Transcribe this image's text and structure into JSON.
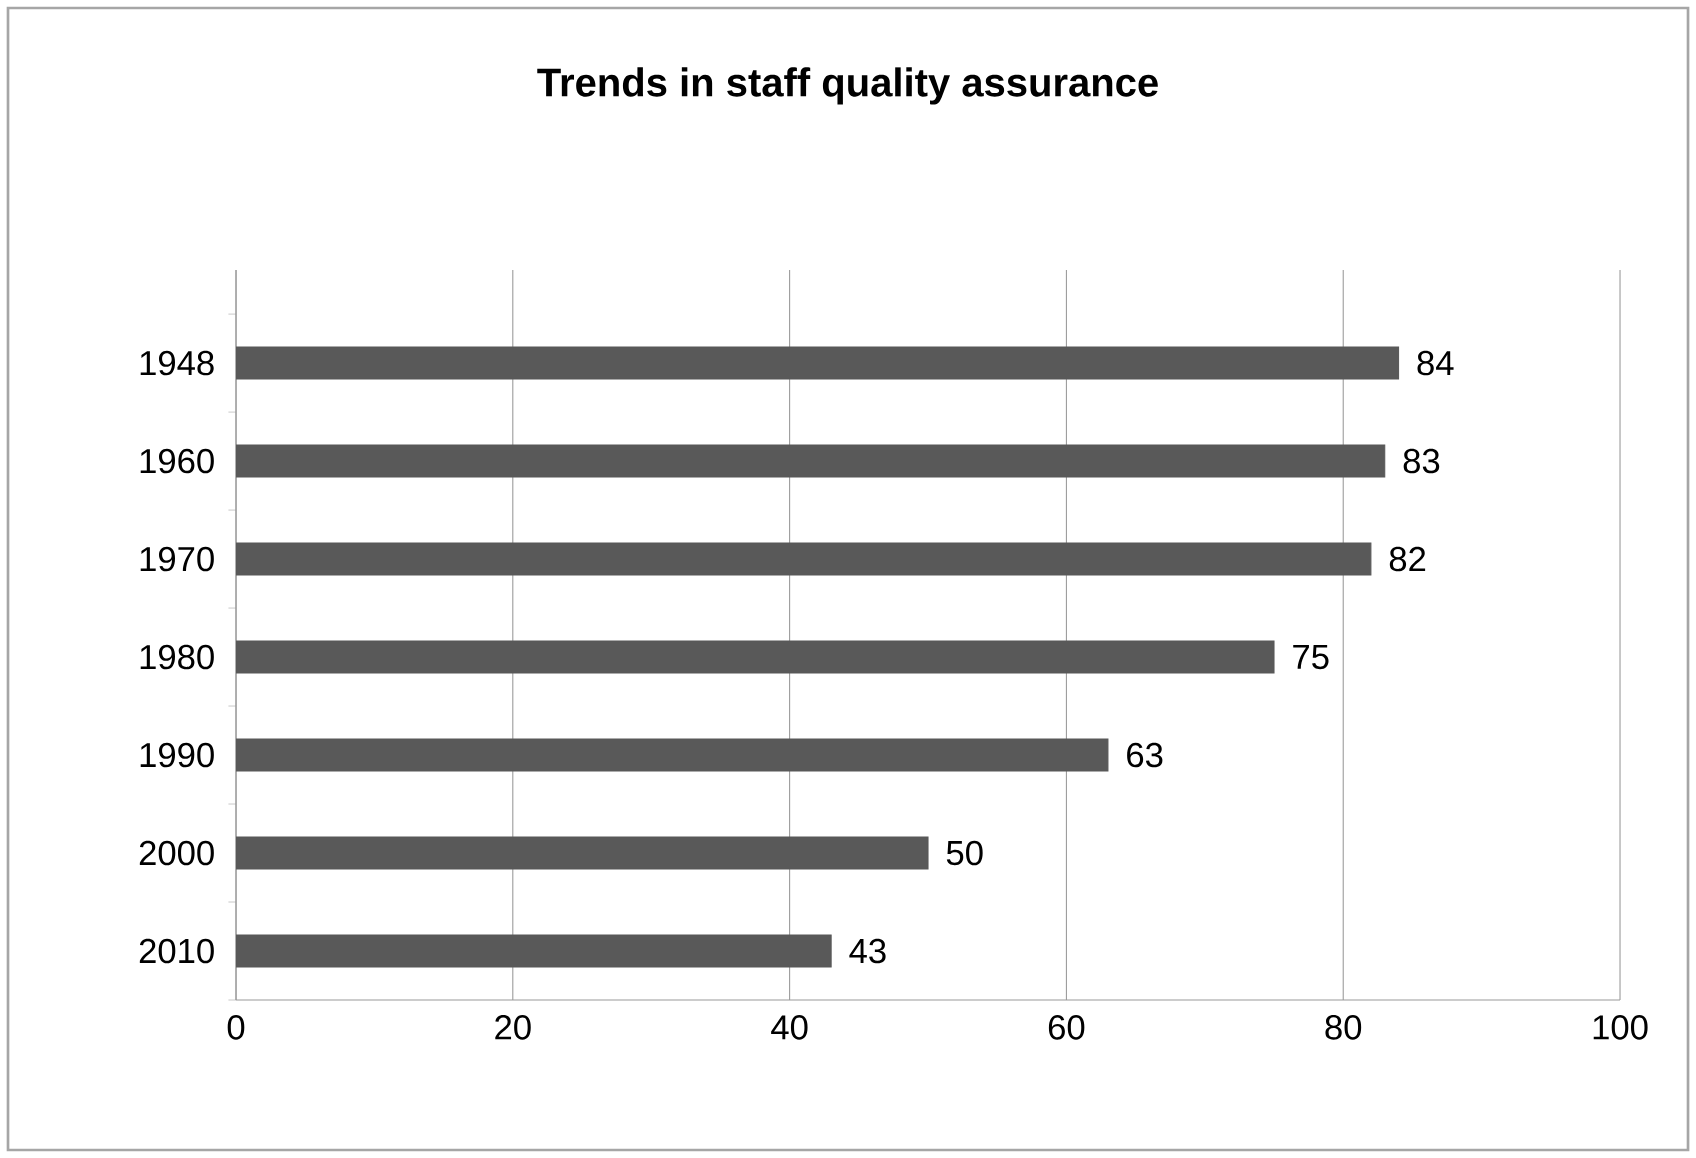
{
  "chart_data": {
    "type": "bar",
    "orientation": "horizontal",
    "title": "Trends in staff quality assurance",
    "categories": [
      "1948",
      "1960",
      "1970",
      "1980",
      "1990",
      "2000",
      "2010"
    ],
    "values": [
      84,
      83,
      82,
      75,
      63,
      50,
      43
    ],
    "color": "#595959",
    "xlim": [
      0,
      100
    ],
    "xticks": [
      0,
      20,
      40,
      60,
      80,
      100
    ],
    "grid": "x",
    "data_labels": true
  }
}
